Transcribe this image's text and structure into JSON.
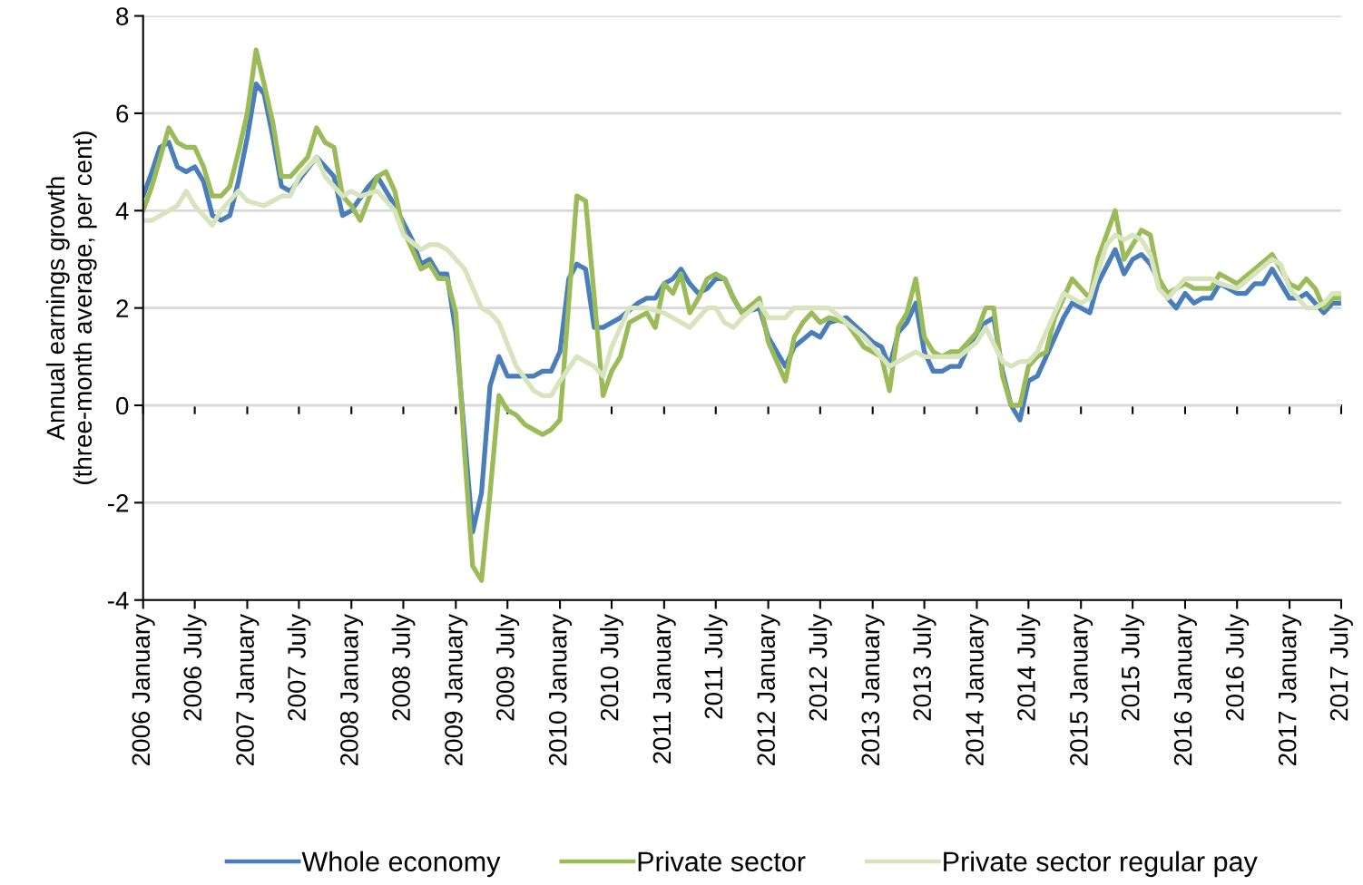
{
  "chart_data": {
    "type": "line",
    "ylabel": "Annual earnings growth\n(three-month average, per cent)",
    "xlim": [
      "2006-01",
      "2017-07"
    ],
    "xticks": [
      {
        "value": "2006-01",
        "label": "2006 January"
      },
      {
        "value": "2006-07",
        "label": "2006 July"
      },
      {
        "value": "2007-01",
        "label": "2007 January"
      },
      {
        "value": "2007-07",
        "label": "2007 July"
      },
      {
        "value": "2008-01",
        "label": "2008 January"
      },
      {
        "value": "2008-07",
        "label": "2008 July"
      },
      {
        "value": "2009-01",
        "label": "2009 January"
      },
      {
        "value": "2009-07",
        "label": "2009 July"
      },
      {
        "value": "2010-01",
        "label": "2010 January"
      },
      {
        "value": "2010-07",
        "label": "2010 July"
      },
      {
        "value": "2011-01",
        "label": "2011 January"
      },
      {
        "value": "2011-07",
        "label": "2011 July"
      },
      {
        "value": "2012-01",
        "label": "2012 January"
      },
      {
        "value": "2012-07",
        "label": "2012 July"
      },
      {
        "value": "2013-01",
        "label": "2013 January"
      },
      {
        "value": "2013-07",
        "label": "2013 July"
      },
      {
        "value": "2014-01",
        "label": "2014 January"
      },
      {
        "value": "2014-07",
        "label": "2014 July"
      },
      {
        "value": "2015-01",
        "label": "2015 January"
      },
      {
        "value": "2015-07",
        "label": "2015 July"
      },
      {
        "value": "2016-01",
        "label": "2016 January"
      },
      {
        "value": "2016-07",
        "label": "2016 July"
      },
      {
        "value": "2017-01",
        "label": "2017 January"
      },
      {
        "value": "2017-07",
        "label": "2017 July"
      }
    ],
    "ylim": [
      -4,
      8
    ],
    "yticks": [
      -4,
      -2,
      0,
      2,
      4,
      6,
      8
    ],
    "grid": "y",
    "legend": "bottom",
    "marker": "none",
    "line_style": "solid",
    "series": [
      {
        "name": "Whole economy",
        "color": "#4a7ebb",
        "x": [
          "2006-01",
          "2006-02",
          "2006-03",
          "2006-04",
          "2006-05",
          "2006-06",
          "2006-07",
          "2006-08",
          "2006-09",
          "2006-10",
          "2006-11",
          "2006-12",
          "2007-01",
          "2007-02",
          "2007-03",
          "2007-04",
          "2007-05",
          "2007-06",
          "2007-09",
          "2007-11",
          "2007-12",
          "2008-01",
          "2008-03",
          "2008-04",
          "2008-06",
          "2008-08",
          "2008-09",
          "2008-10",
          "2008-11",
          "2008-12",
          "2009-01",
          "2009-03",
          "2009-04",
          "2009-05",
          "2009-06",
          "2009-07",
          "2009-10",
          "2009-11",
          "2009-12",
          "2010-01",
          "2010-02",
          "2010-03",
          "2010-04",
          "2010-05",
          "2010-06",
          "2010-08",
          "2010-10",
          "2010-11",
          "2010-12",
          "2011-01",
          "2011-02",
          "2011-03",
          "2011-04",
          "2011-05",
          "2011-06",
          "2011-07",
          "2011-08",
          "2011-09",
          "2011-10",
          "2011-12",
          "2012-01",
          "2012-03",
          "2012-04",
          "2012-06",
          "2012-07",
          "2012-08",
          "2012-10",
          "2013-01",
          "2013-02",
          "2013-03",
          "2013-04",
          "2013-05",
          "2013-06",
          "2013-07",
          "2013-08",
          "2013-09",
          "2013-10",
          "2013-11",
          "2013-12",
          "2014-02",
          "2014-03",
          "2014-04",
          "2014-05",
          "2014-06",
          "2014-07",
          "2014-08",
          "2014-09",
          "2014-11",
          "2014-12",
          "2015-02",
          "2015-03",
          "2015-05",
          "2015-06",
          "2015-07",
          "2015-08",
          "2015-09",
          "2015-11",
          "2015-12",
          "2016-01",
          "2016-02",
          "2016-03",
          "2016-04",
          "2016-05",
          "2016-07",
          "2016-08",
          "2016-09",
          "2016-10",
          "2016-11",
          "2017-01",
          "2017-02",
          "2017-03",
          "2017-05",
          "2017-06",
          "2017-07"
        ],
        "values": [
          4.3,
          4.8,
          5.3,
          5.4,
          4.9,
          4.8,
          4.9,
          4.6,
          3.9,
          3.8,
          3.9,
          4.6,
          5.5,
          6.6,
          6.4,
          5.5,
          4.5,
          4.4,
          5.1,
          4.7,
          3.9,
          4.0,
          4.5,
          4.7,
          4.1,
          3.4,
          2.9,
          3.0,
          2.7,
          2.7,
          1.5,
          -2.6,
          -1.8,
          0.4,
          1.0,
          0.6,
          0.6,
          0.7,
          0.7,
          1.1,
          2.6,
          2.9,
          2.8,
          1.6,
          1.6,
          1.8,
          2.1,
          2.2,
          2.2,
          2.5,
          2.6,
          2.8,
          2.5,
          2.3,
          2.4,
          2.6,
          2.6,
          2.2,
          1.9,
          2.0,
          1.4,
          0.8,
          1.2,
          1.5,
          1.4,
          1.7,
          1.8,
          1.3,
          1.2,
          0.8,
          1.5,
          1.7,
          2.1,
          1.1,
          0.7,
          0.7,
          0.8,
          0.8,
          1.2,
          1.7,
          1.8,
          0.7,
          0.0,
          -0.3,
          0.5,
          0.6,
          1.0,
          1.8,
          2.1,
          1.9,
          2.5,
          3.2,
          2.7,
          3.0,
          3.1,
          2.9,
          2.2,
          2.0,
          2.3,
          2.1,
          2.2,
          2.2,
          2.5,
          2.3,
          2.3,
          2.5,
          2.5,
          2.8,
          2.2,
          2.2,
          2.3,
          1.9,
          2.1,
          2.1
        ]
      },
      {
        "name": "Private sector",
        "color": "#9bbb59",
        "x": [
          "2006-01",
          "2006-02",
          "2006-04",
          "2006-05",
          "2006-06",
          "2006-07",
          "2006-08",
          "2006-09",
          "2006-10",
          "2006-11",
          "2006-12",
          "2007-01",
          "2007-02",
          "2007-03",
          "2007-04",
          "2007-05",
          "2007-06",
          "2007-08",
          "2007-09",
          "2007-10",
          "2007-11",
          "2007-12",
          "2008-01",
          "2008-02",
          "2008-04",
          "2008-05",
          "2008-06",
          "2008-07",
          "2008-09",
          "2008-10",
          "2008-11",
          "2008-12",
          "2009-01",
          "2009-02",
          "2009-03",
          "2009-04",
          "2009-05",
          "2009-06",
          "2009-07",
          "2009-08",
          "2009-09",
          "2009-10",
          "2009-11",
          "2009-12",
          "2010-01",
          "2010-03",
          "2010-04",
          "2010-06",
          "2010-07",
          "2010-08",
          "2010-09",
          "2010-11",
          "2010-12",
          "2011-01",
          "2011-02",
          "2011-03",
          "2011-04",
          "2011-05",
          "2011-06",
          "2011-07",
          "2011-08",
          "2011-09",
          "2011-10",
          "2011-12",
          "2012-01",
          "2012-03",
          "2012-04",
          "2012-05",
          "2012-06",
          "2012-07",
          "2012-08",
          "2012-10",
          "2012-12",
          "2013-02",
          "2013-03",
          "2013-04",
          "2013-05",
          "2013-06",
          "2013-07",
          "2013-08",
          "2013-09",
          "2013-10",
          "2013-11",
          "2014-01",
          "2014-02",
          "2014-03",
          "2014-04",
          "2014-05",
          "2014-06",
          "2014-07",
          "2014-08",
          "2014-09",
          "2014-10",
          "2014-12",
          "2015-02",
          "2015-03",
          "2015-05",
          "2015-06",
          "2015-08",
          "2015-09",
          "2015-10",
          "2015-11",
          "2016-01",
          "2016-02",
          "2016-04",
          "2016-05",
          "2016-07",
          "2016-09",
          "2016-11",
          "2017-01",
          "2017-02",
          "2017-03",
          "2017-04",
          "2017-05",
          "2017-06",
          "2017-07"
        ],
        "values": [
          4.0,
          4.5,
          5.7,
          5.4,
          5.3,
          5.3,
          4.9,
          4.3,
          4.3,
          4.5,
          5.2,
          6.0,
          7.3,
          6.6,
          5.8,
          4.7,
          4.7,
          5.1,
          5.7,
          5.4,
          5.3,
          4.3,
          4.1,
          3.8,
          4.7,
          4.8,
          4.4,
          3.6,
          2.8,
          2.9,
          2.6,
          2.6,
          1.9,
          -1.0,
          -3.3,
          -3.6,
          -1.8,
          0.2,
          -0.1,
          -0.2,
          -0.4,
          -0.5,
          -0.6,
          -0.5,
          -0.3,
          4.3,
          4.2,
          0.2,
          0.7,
          1.0,
          1.7,
          1.9,
          1.6,
          2.5,
          2.3,
          2.7,
          1.9,
          2.2,
          2.6,
          2.7,
          2.6,
          2.2,
          1.9,
          2.2,
          1.3,
          0.5,
          1.4,
          1.7,
          1.9,
          1.7,
          1.8,
          1.7,
          1.2,
          1.0,
          0.3,
          1.6,
          1.9,
          2.6,
          1.4,
          1.1,
          1.0,
          1.1,
          1.1,
          1.5,
          2.0,
          2.0,
          0.6,
          0.0,
          0.0,
          0.8,
          1.0,
          1.1,
          1.8,
          2.6,
          2.2,
          3.0,
          4.0,
          3.0,
          3.6,
          3.5,
          2.6,
          2.3,
          2.5,
          2.4,
          2.4,
          2.7,
          2.5,
          2.8,
          3.1,
          2.5,
          2.4,
          2.6,
          2.4,
          2.0,
          2.2,
          2.2
        ]
      },
      {
        "name": "Private sector regular pay",
        "color": "#d7e4bd",
        "x": [
          "2006-01",
          "2006-02",
          "2006-05",
          "2006-06",
          "2006-07",
          "2006-08",
          "2006-09",
          "2006-10",
          "2006-12",
          "2007-01",
          "2007-03",
          "2007-05",
          "2007-06",
          "2007-07",
          "2007-09",
          "2007-10",
          "2007-12",
          "2008-01",
          "2008-02",
          "2008-04",
          "2008-06",
          "2008-07",
          "2008-09",
          "2008-10",
          "2008-11",
          "2008-12",
          "2009-02",
          "2009-04",
          "2009-05",
          "2009-06",
          "2009-08",
          "2009-10",
          "2009-11",
          "2009-12",
          "2010-01",
          "2010-03",
          "2010-05",
          "2010-06",
          "2010-07",
          "2010-09",
          "2010-11",
          "2011-01",
          "2011-04",
          "2011-06",
          "2011-07",
          "2011-08",
          "2011-09",
          "2011-10",
          "2011-12",
          "2012-01",
          "2012-03",
          "2012-04",
          "2012-08",
          "2012-10",
          "2012-12",
          "2013-01",
          "2013-03",
          "2013-05",
          "2013-06",
          "2013-07",
          "2013-11",
          "2014-01",
          "2014-02",
          "2014-04",
          "2014-05",
          "2014-06",
          "2014-07",
          "2014-08",
          "2014-10",
          "2014-11",
          "2015-01",
          "2015-02",
          "2015-04",
          "2015-05",
          "2015-06",
          "2015-07",
          "2015-08",
          "2015-09",
          "2015-10",
          "2015-11",
          "2016-01",
          "2016-04",
          "2016-05",
          "2016-07",
          "2016-09",
          "2016-11",
          "2016-12",
          "2017-01",
          "2017-03",
          "2017-04",
          "2017-05",
          "2017-06",
          "2017-07"
        ],
        "values": [
          3.8,
          3.8,
          4.1,
          4.4,
          4.1,
          3.9,
          3.7,
          4.0,
          4.4,
          4.2,
          4.1,
          4.3,
          4.3,
          4.7,
          5.1,
          4.7,
          4.3,
          4.4,
          4.3,
          4.4,
          4.0,
          3.5,
          3.2,
          3.3,
          3.3,
          3.2,
          2.8,
          2.0,
          1.9,
          1.7,
          0.8,
          0.3,
          0.2,
          0.2,
          0.5,
          1.0,
          0.8,
          0.6,
          1.2,
          2.0,
          2.0,
          1.9,
          1.6,
          2.0,
          2.0,
          1.7,
          1.6,
          1.8,
          2.1,
          1.8,
          1.8,
          2.0,
          2.0,
          1.7,
          1.4,
          1.2,
          0.8,
          1.0,
          1.1,
          1.0,
          1.0,
          1.3,
          1.6,
          0.9,
          0.8,
          0.9,
          0.9,
          1.1,
          1.9,
          2.3,
          2.1,
          2.2,
          3.3,
          3.5,
          3.4,
          3.5,
          3.4,
          3.1,
          2.4,
          2.2,
          2.6,
          2.6,
          2.5,
          2.4,
          2.7,
          3.0,
          2.9,
          2.4,
          2.0,
          2.0,
          2.1,
          2.3,
          2.3
        ]
      }
    ]
  }
}
